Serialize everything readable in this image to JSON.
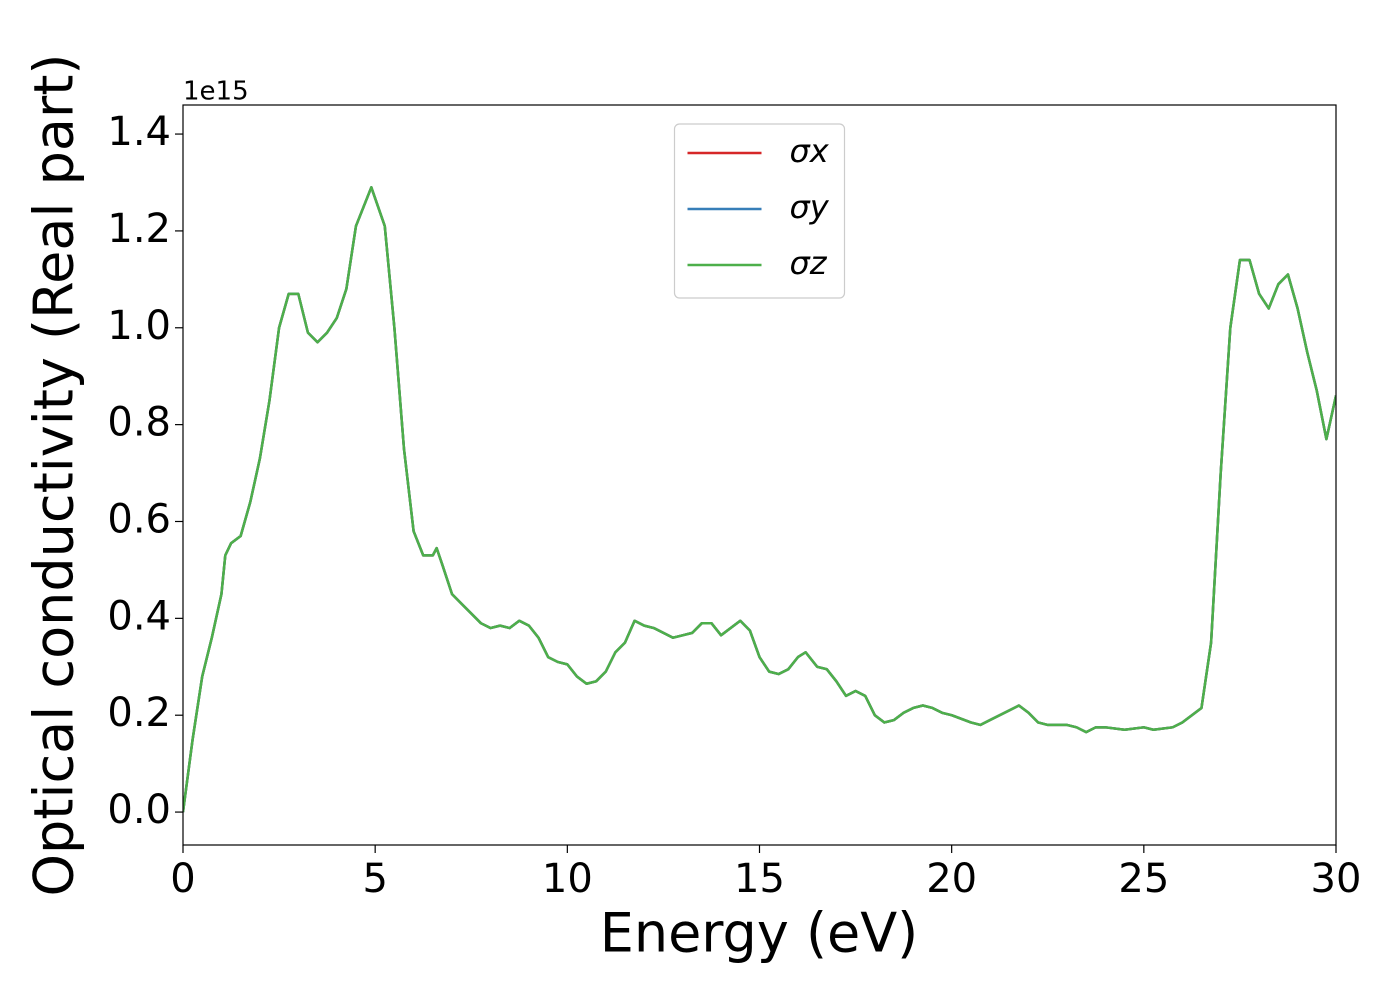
{
  "chart_data": {
    "type": "line",
    "xlabel": "Energy (eV)",
    "ylabel": "Optical conductivity (Real part)",
    "y_offset_label": "1e15",
    "x": [
      0,
      0.25,
      0.5,
      0.75,
      1.0,
      1.1,
      1.25,
      1.5,
      1.75,
      2.0,
      2.25,
      2.5,
      2.75,
      3.0,
      3.25,
      3.5,
      3.75,
      4.0,
      4.25,
      4.5,
      4.9,
      5.25,
      5.5,
      5.75,
      6.0,
      6.25,
      6.5,
      6.6,
      6.75,
      7.0,
      7.25,
      7.5,
      7.75,
      8.0,
      8.25,
      8.5,
      8.75,
      9.0,
      9.25,
      9.5,
      9.75,
      10.0,
      10.25,
      10.5,
      10.75,
      11.0,
      11.25,
      11.5,
      11.75,
      12.0,
      12.25,
      12.5,
      12.75,
      13.0,
      13.25,
      13.5,
      13.75,
      14.0,
      14.25,
      14.5,
      14.75,
      15.0,
      15.25,
      15.5,
      15.75,
      16.0,
      16.2,
      16.5,
      16.75,
      17.0,
      17.25,
      17.5,
      17.75,
      18.0,
      18.25,
      18.5,
      18.75,
      19.0,
      19.25,
      19.5,
      19.75,
      20.0,
      20.5,
      20.75,
      21.0,
      21.5,
      21.75,
      22.0,
      22.25,
      22.5,
      23.0,
      23.25,
      23.5,
      23.75,
      24.0,
      24.5,
      25.0,
      25.25,
      25.75,
      26.0,
      26.5,
      26.75,
      27.0,
      27.25,
      27.5,
      27.75,
      28.0,
      28.25,
      28.5,
      28.75,
      29.0,
      29.25,
      29.5,
      29.75,
      30.0
    ],
    "series": [
      {
        "name": "σx",
        "color": "#d62728",
        "values": [
          0.0,
          0.15,
          0.28,
          0.36,
          0.45,
          0.53,
          0.555,
          0.57,
          0.64,
          0.73,
          0.85,
          1.0,
          1.07,
          1.07,
          0.99,
          0.97,
          0.99,
          1.02,
          1.08,
          1.21,
          1.29,
          1.21,
          1.0,
          0.75,
          0.58,
          0.53,
          0.53,
          0.545,
          0.51,
          0.45,
          0.43,
          0.41,
          0.39,
          0.38,
          0.385,
          0.38,
          0.395,
          0.385,
          0.36,
          0.32,
          0.31,
          0.305,
          0.28,
          0.265,
          0.27,
          0.29,
          0.33,
          0.35,
          0.395,
          0.385,
          0.38,
          0.37,
          0.36,
          0.365,
          0.37,
          0.39,
          0.39,
          0.365,
          0.38,
          0.395,
          0.375,
          0.32,
          0.29,
          0.285,
          0.295,
          0.32,
          0.33,
          0.3,
          0.295,
          0.27,
          0.24,
          0.25,
          0.24,
          0.2,
          0.185,
          0.19,
          0.205,
          0.215,
          0.22,
          0.215,
          0.205,
          0.2,
          0.185,
          0.18,
          0.19,
          0.21,
          0.22,
          0.205,
          0.185,
          0.18,
          0.18,
          0.175,
          0.165,
          0.175,
          0.175,
          0.17,
          0.175,
          0.17,
          0.175,
          0.185,
          0.215,
          0.35,
          0.7,
          1.0,
          1.14,
          1.14,
          1.07,
          1.04,
          1.09,
          1.11,
          1.04,
          0.95,
          0.87,
          0.77,
          0.86
        ]
      },
      {
        "name": "σy",
        "color": "#377eb8",
        "values": [
          0.0,
          0.15,
          0.28,
          0.36,
          0.45,
          0.53,
          0.555,
          0.57,
          0.64,
          0.73,
          0.85,
          1.0,
          1.07,
          1.07,
          0.99,
          0.97,
          0.99,
          1.02,
          1.08,
          1.21,
          1.29,
          1.21,
          1.0,
          0.75,
          0.58,
          0.53,
          0.53,
          0.545,
          0.51,
          0.45,
          0.43,
          0.41,
          0.39,
          0.38,
          0.385,
          0.38,
          0.395,
          0.385,
          0.36,
          0.32,
          0.31,
          0.305,
          0.28,
          0.265,
          0.27,
          0.29,
          0.33,
          0.35,
          0.395,
          0.385,
          0.38,
          0.37,
          0.36,
          0.365,
          0.37,
          0.39,
          0.39,
          0.365,
          0.38,
          0.395,
          0.375,
          0.32,
          0.29,
          0.285,
          0.295,
          0.32,
          0.33,
          0.3,
          0.295,
          0.27,
          0.24,
          0.25,
          0.24,
          0.2,
          0.185,
          0.19,
          0.205,
          0.215,
          0.22,
          0.215,
          0.205,
          0.2,
          0.185,
          0.18,
          0.19,
          0.21,
          0.22,
          0.205,
          0.185,
          0.18,
          0.18,
          0.175,
          0.165,
          0.175,
          0.175,
          0.17,
          0.175,
          0.17,
          0.175,
          0.185,
          0.215,
          0.35,
          0.7,
          1.0,
          1.14,
          1.14,
          1.07,
          1.04,
          1.09,
          1.11,
          1.04,
          0.95,
          0.87,
          0.77,
          0.86
        ]
      },
      {
        "name": "σz",
        "color": "#4daf4a",
        "values": [
          0.0,
          0.15,
          0.28,
          0.36,
          0.45,
          0.53,
          0.555,
          0.57,
          0.64,
          0.73,
          0.85,
          1.0,
          1.07,
          1.07,
          0.99,
          0.97,
          0.99,
          1.02,
          1.08,
          1.21,
          1.29,
          1.21,
          1.0,
          0.75,
          0.58,
          0.53,
          0.53,
          0.545,
          0.51,
          0.45,
          0.43,
          0.41,
          0.39,
          0.38,
          0.385,
          0.38,
          0.395,
          0.385,
          0.36,
          0.32,
          0.31,
          0.305,
          0.28,
          0.265,
          0.27,
          0.29,
          0.33,
          0.35,
          0.395,
          0.385,
          0.38,
          0.37,
          0.36,
          0.365,
          0.37,
          0.39,
          0.39,
          0.365,
          0.38,
          0.395,
          0.375,
          0.32,
          0.29,
          0.285,
          0.295,
          0.32,
          0.33,
          0.3,
          0.295,
          0.27,
          0.24,
          0.25,
          0.24,
          0.2,
          0.185,
          0.19,
          0.205,
          0.215,
          0.22,
          0.215,
          0.205,
          0.2,
          0.185,
          0.18,
          0.19,
          0.21,
          0.22,
          0.205,
          0.185,
          0.18,
          0.18,
          0.175,
          0.165,
          0.175,
          0.175,
          0.17,
          0.175,
          0.17,
          0.175,
          0.185,
          0.215,
          0.35,
          0.7,
          1.0,
          1.14,
          1.14,
          1.07,
          1.04,
          1.09,
          1.11,
          1.04,
          0.95,
          0.87,
          0.77,
          0.86
        ]
      }
    ],
    "xlim": [
      0,
      30
    ],
    "xticks": [
      0,
      5,
      10,
      15,
      20,
      25,
      30
    ],
    "ylim": [
      -0.068,
      1.46
    ],
    "yticks": [
      {
        "value": 0,
        "label": "0.0"
      },
      0.2,
      0.4,
      0.6,
      0.8,
      {
        "value": 1,
        "label": "1.0"
      },
      1.2,
      1.4
    ],
    "legend": "upper center",
    "grid": false
  }
}
